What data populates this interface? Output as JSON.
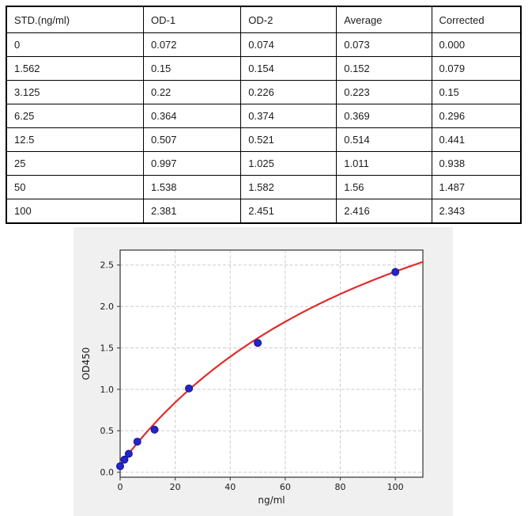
{
  "table": {
    "headers": [
      "STD.(ng/ml)",
      "OD-1",
      "OD-2",
      "Average",
      "Corrected"
    ],
    "rows": [
      [
        "0",
        "0.072",
        "0.074",
        "0.073",
        "0.000"
      ],
      [
        "1.562",
        "0.15",
        "0.154",
        "0.152",
        "0.079"
      ],
      [
        "3.125",
        "0.22",
        "0.226",
        "0.223",
        "0.15"
      ],
      [
        "6.25",
        "0.364",
        "0.374",
        "0.369",
        "0.296"
      ],
      [
        "12.5",
        "0.507",
        "0.521",
        "0.514",
        "0.441"
      ],
      [
        "25",
        "0.997",
        "1.025",
        "1.011",
        "0.938"
      ],
      [
        "50",
        "1.538",
        "1.582",
        "1.56",
        "1.487"
      ],
      [
        "100",
        "2.381",
        "2.451",
        "2.416",
        "2.343"
      ]
    ]
  },
  "chart_data": {
    "type": "scatter",
    "title": "",
    "xlabel": "ng/ml",
    "ylabel": "OD450",
    "xlim": [
      0,
      110
    ],
    "ylim": [
      -0.06,
      2.68
    ],
    "xticks": [
      0,
      20,
      40,
      60,
      80,
      100
    ],
    "yticks": [
      0.0,
      0.5,
      1.0,
      1.5,
      2.0,
      2.5
    ],
    "grid": true,
    "legend": "none",
    "series": [
      {
        "name": "standard-points",
        "type": "scatter",
        "x": [
          0,
          1.562,
          3.125,
          6.25,
          12.5,
          25,
          50,
          100
        ],
        "y": [
          0.073,
          0.152,
          0.223,
          0.369,
          0.514,
          1.011,
          1.56,
          2.416
        ],
        "marker_fill": "#2424cb",
        "marker_edge": "#18188f"
      },
      {
        "name": "fit-curve",
        "type": "line",
        "color": "#e02c2c",
        "fit_model": "y = a + (d - a) * x / (c + x)",
        "fit_params": {
          "a": 0.09,
          "d": 5.0,
          "c": 110.7
        },
        "x_start": 0,
        "x_end": 110
      }
    ],
    "colors": {
      "figure_bg": "#f0f0f0",
      "plot_bg": "#ffffff",
      "grid": "#cbcbcb",
      "spine": "#4d4d4d",
      "tick_label": "#1a1a1a"
    }
  }
}
